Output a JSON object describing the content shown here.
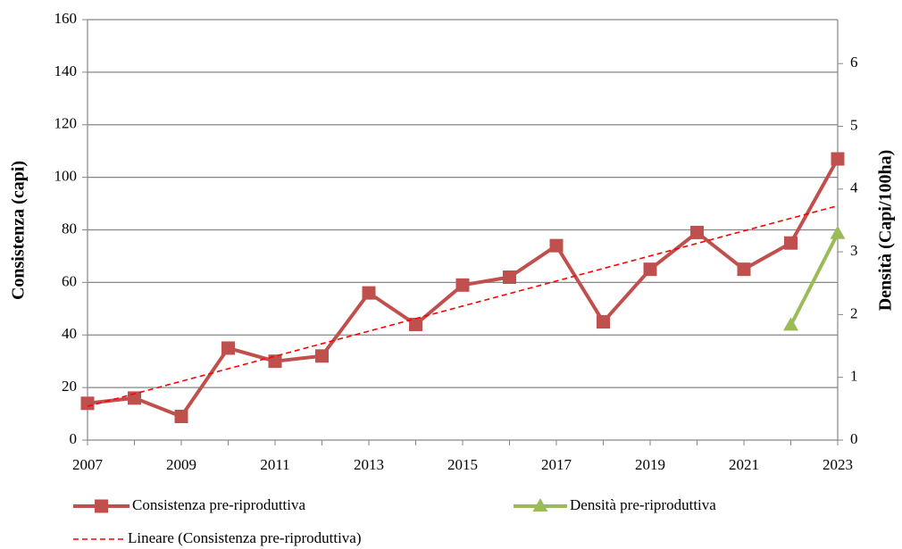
{
  "chart_data": {
    "type": "line",
    "ylabel": "Consistenza (capi)",
    "y2label": "Densità (Capi/100ha)",
    "categories": [
      "2007",
      null,
      "2009",
      null,
      "2011",
      null,
      "2013",
      null,
      "2015",
      null,
      "2017",
      null,
      "2019",
      null,
      "2021",
      null,
      "2023"
    ],
    "series": [
      {
        "name": "Consistenza pre-riproduttiva",
        "color": "#c0504d",
        "marker": "square",
        "values": [
          14,
          16,
          9,
          35,
          30,
          32,
          56,
          44,
          59,
          62,
          74,
          45,
          65,
          79,
          65,
          75,
          107
        ]
      },
      {
        "name": "Densità pre-riproduttiva",
        "color": "#9bbb59",
        "marker": "triangle",
        "axis": "y2",
        "values": [
          null,
          null,
          null,
          null,
          null,
          null,
          null,
          null,
          null,
          null,
          null,
          null,
          null,
          null,
          null,
          1.83,
          3.29
        ]
      },
      {
        "name": "Lineare (Consistenza pre-riproduttiva)",
        "color": "#ff0000",
        "trend_of": 0,
        "dashed": true
      }
    ],
    "ylim": [
      0,
      160
    ],
    "yticks": [
      0,
      20,
      40,
      60,
      80,
      100,
      120,
      140,
      160
    ],
    "y2lim": [
      0,
      6.7
    ],
    "y2ticks": [
      0,
      1,
      2,
      3,
      4,
      5,
      6
    ],
    "grid": true
  }
}
